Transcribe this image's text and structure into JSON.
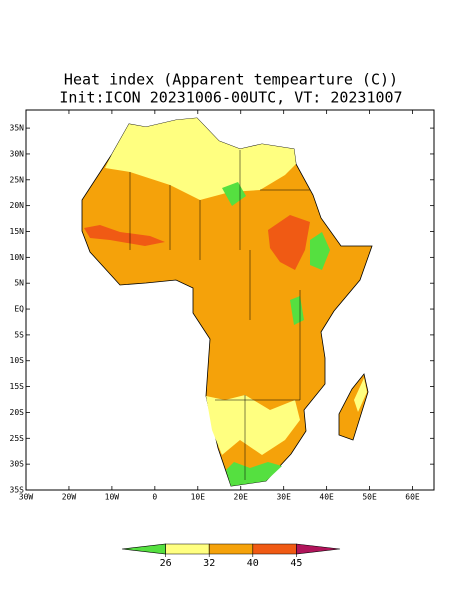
{
  "map": {
    "title": "Heat index (Apparent tempearture (C))",
    "subtitle": "Init:ICON 20231006-00UTC, VT: 20231007",
    "lonlim": [
      -30,
      65
    ],
    "latlim": [
      -35,
      38.5
    ],
    "lat_ticks": [
      {
        "value": 35,
        "label": "35N"
      },
      {
        "value": 30,
        "label": "30N"
      },
      {
        "value": 25,
        "label": "25N"
      },
      {
        "value": 20,
        "label": "20N"
      },
      {
        "value": 15,
        "label": "15N"
      },
      {
        "value": 10,
        "label": "10N"
      },
      {
        "value": 5,
        "label": "5N"
      },
      {
        "value": 0,
        "label": "EQ"
      },
      {
        "value": -5,
        "label": "5S"
      },
      {
        "value": -10,
        "label": "10S"
      },
      {
        "value": -15,
        "label": "15S"
      },
      {
        "value": -20,
        "label": "20S"
      },
      {
        "value": -25,
        "label": "25S"
      },
      {
        "value": -30,
        "label": "30S"
      },
      {
        "value": -35,
        "label": "35S"
      }
    ],
    "lon_ticks": [
      {
        "value": -30,
        "label": "30W"
      },
      {
        "value": -20,
        "label": "20W"
      },
      {
        "value": -10,
        "label": "10W"
      },
      {
        "value": 0,
        "label": "0"
      },
      {
        "value": 10,
        "label": "10E"
      },
      {
        "value": 20,
        "label": "20E"
      },
      {
        "value": 30,
        "label": "30E"
      },
      {
        "value": 40,
        "label": "40E"
      },
      {
        "value": 50,
        "label": "50E"
      },
      {
        "value": 60,
        "label": "60E"
      }
    ],
    "colorbar": {
      "levels": [
        26,
        32,
        40,
        45
      ],
      "colors": [
        "#55e040",
        "#ffff80",
        "#f5a20a",
        "#f05a14",
        "#b0145a"
      ]
    }
  }
}
